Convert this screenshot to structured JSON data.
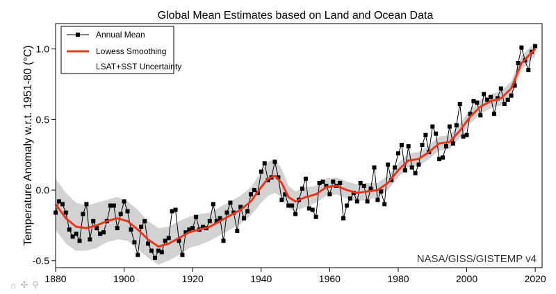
{
  "chart_data": {
    "type": "line",
    "title": "Global Mean Estimates based on Land and Ocean Data",
    "xlabel": "",
    "ylabel": "Temperature Anomaly w.r.t. 1951-80 (°C)",
    "xlim": [
      1880,
      2022
    ],
    "ylim": [
      -0.55,
      1.18
    ],
    "x_ticks": [
      "1880",
      "1900",
      "1920",
      "1940",
      "1960",
      "1980",
      "2000",
      "2020"
    ],
    "y_ticks": [
      "-0.5",
      "0.0",
      "0.5",
      "1.0"
    ],
    "legend": {
      "placement": "top-left",
      "entries": [
        "Annual Mean",
        "Lowess Smoothing",
        "LSAT+SST Uncertainty"
      ]
    },
    "source_label": "NASA/GISS/GISTEMP v4",
    "colors": {
      "annual": "#000000",
      "lowess": "#e8351c",
      "uncertainty": "#d2d2d2"
    },
    "series": [
      {
        "name": "Annual Mean",
        "x": [
          1880,
          1881,
          1882,
          1883,
          1884,
          1885,
          1886,
          1887,
          1888,
          1889,
          1890,
          1891,
          1892,
          1893,
          1894,
          1895,
          1896,
          1897,
          1898,
          1899,
          1900,
          1901,
          1902,
          1903,
          1904,
          1905,
          1906,
          1907,
          1908,
          1909,
          1910,
          1911,
          1912,
          1913,
          1914,
          1915,
          1916,
          1917,
          1918,
          1919,
          1920,
          1921,
          1922,
          1923,
          1924,
          1925,
          1926,
          1927,
          1928,
          1929,
          1930,
          1931,
          1932,
          1933,
          1934,
          1935,
          1936,
          1937,
          1938,
          1939,
          1940,
          1941,
          1942,
          1943,
          1944,
          1945,
          1946,
          1947,
          1948,
          1949,
          1950,
          1951,
          1952,
          1953,
          1954,
          1955,
          1956,
          1957,
          1958,
          1959,
          1960,
          1961,
          1962,
          1963,
          1964,
          1965,
          1966,
          1967,
          1968,
          1969,
          1970,
          1971,
          1972,
          1973,
          1974,
          1975,
          1976,
          1977,
          1978,
          1979,
          1980,
          1981,
          1982,
          1983,
          1984,
          1985,
          1986,
          1987,
          1988,
          1989,
          1990,
          1991,
          1992,
          1993,
          1994,
          1995,
          1996,
          1997,
          1998,
          1999,
          2000,
          2001,
          2002,
          2003,
          2004,
          2005,
          2006,
          2007,
          2008,
          2009,
          2010,
          2011,
          2012,
          2013,
          2014,
          2015,
          2016,
          2017,
          2018,
          2019,
          2020
        ],
        "values": [
          -0.16,
          -0.08,
          -0.1,
          -0.16,
          -0.28,
          -0.33,
          -0.31,
          -0.36,
          -0.17,
          -0.1,
          -0.35,
          -0.22,
          -0.27,
          -0.31,
          -0.3,
          -0.22,
          -0.11,
          -0.11,
          -0.27,
          -0.17,
          -0.08,
          -0.15,
          -0.28,
          -0.37,
          -0.46,
          -0.26,
          -0.22,
          -0.38,
          -0.43,
          -0.48,
          -0.43,
          -0.44,
          -0.36,
          -0.34,
          -0.15,
          -0.14,
          -0.36,
          -0.46,
          -0.3,
          -0.28,
          -0.27,
          -0.19,
          -0.28,
          -0.26,
          -0.27,
          -0.22,
          -0.1,
          -0.22,
          -0.2,
          -0.36,
          -0.16,
          -0.09,
          -0.16,
          -0.29,
          -0.12,
          -0.2,
          -0.15,
          -0.03,
          -0.0,
          -0.02,
          0.13,
          0.19,
          0.07,
          0.09,
          0.2,
          0.09,
          -0.07,
          -0.03,
          -0.11,
          -0.11,
          -0.17,
          -0.07,
          0.01,
          0.08,
          -0.13,
          -0.14,
          -0.19,
          0.05,
          0.06,
          0.03,
          -0.03,
          0.06,
          0.03,
          0.05,
          -0.2,
          -0.11,
          -0.06,
          -0.02,
          -0.08,
          0.05,
          0.03,
          -0.08,
          0.01,
          0.16,
          -0.07,
          -0.01,
          -0.1,
          0.18,
          0.07,
          0.16,
          0.26,
          0.32,
          0.14,
          0.31,
          0.16,
          0.12,
          0.18,
          0.32,
          0.39,
          0.27,
          0.45,
          0.4,
          0.22,
          0.23,
          0.31,
          0.45,
          0.33,
          0.46,
          0.61,
          0.38,
          0.39,
          0.54,
          0.63,
          0.62,
          0.53,
          0.68,
          0.64,
          0.66,
          0.54,
          0.65,
          0.72,
          0.61,
          0.64,
          0.67,
          0.74,
          0.9,
          1.01,
          0.92,
          0.85,
          0.98,
          1.02
        ]
      },
      {
        "name": "Lowess Smoothing",
        "x": [
          1880,
          1883,
          1886,
          1889,
          1892,
          1895,
          1898,
          1901,
          1904,
          1907,
          1910,
          1913,
          1916,
          1919,
          1922,
          1925,
          1928,
          1931,
          1934,
          1937,
          1940,
          1942,
          1944,
          1946,
          1948,
          1950,
          1953,
          1956,
          1959,
          1962,
          1965,
          1968,
          1971,
          1974,
          1977,
          1980,
          1983,
          1986,
          1989,
          1992,
          1995,
          1998,
          2001,
          2004,
          2007,
          2010,
          2013,
          2016,
          2020
        ],
        "values": [
          -0.1,
          -0.2,
          -0.26,
          -0.27,
          -0.25,
          -0.22,
          -0.2,
          -0.22,
          -0.28,
          -0.35,
          -0.4,
          -0.38,
          -0.34,
          -0.3,
          -0.28,
          -0.26,
          -0.22,
          -0.18,
          -0.14,
          -0.08,
          0.02,
          0.08,
          0.1,
          0.05,
          -0.05,
          -0.08,
          -0.05,
          -0.03,
          0.02,
          0.03,
          0.0,
          -0.02,
          -0.01,
          0.0,
          0.05,
          0.14,
          0.21,
          0.22,
          0.27,
          0.33,
          0.34,
          0.42,
          0.52,
          0.59,
          0.63,
          0.65,
          0.72,
          0.9,
          1.0
        ]
      },
      {
        "name": "LSAT+SST Uncertainty",
        "x": [
          1880,
          1883,
          1886,
          1889,
          1892,
          1895,
          1898,
          1901,
          1904,
          1907,
          1910,
          1913,
          1916,
          1919,
          1922,
          1925,
          1928,
          1931,
          1934,
          1937,
          1940,
          1942,
          1944,
          1946,
          1948,
          1950,
          1953,
          1956,
          1959,
          1962,
          1965,
          1968,
          1971,
          1974,
          1977,
          1980,
          1983,
          1986,
          1989,
          1992,
          1995,
          1998,
          2001,
          2004,
          2007,
          2010,
          2013,
          2016,
          2020
        ],
        "half_width": [
          0.18,
          0.18,
          0.17,
          0.16,
          0.16,
          0.15,
          0.15,
          0.14,
          0.14,
          0.13,
          0.13,
          0.12,
          0.12,
          0.11,
          0.11,
          0.1,
          0.1,
          0.1,
          0.1,
          0.1,
          0.11,
          0.12,
          0.12,
          0.1,
          0.08,
          0.07,
          0.07,
          0.06,
          0.06,
          0.06,
          0.06,
          0.06,
          0.06,
          0.05,
          0.05,
          0.05,
          0.05,
          0.05,
          0.05,
          0.05,
          0.05,
          0.05,
          0.05,
          0.05,
          0.05,
          0.05,
          0.05,
          0.05,
          0.05
        ]
      }
    ]
  },
  "toolbar": {
    "icons": [
      "home-icon",
      "pan-icon",
      "zoom-icon"
    ],
    "home_glyph": "⌂",
    "pan_glyph": "✣",
    "zoom_glyph": "⚲"
  }
}
